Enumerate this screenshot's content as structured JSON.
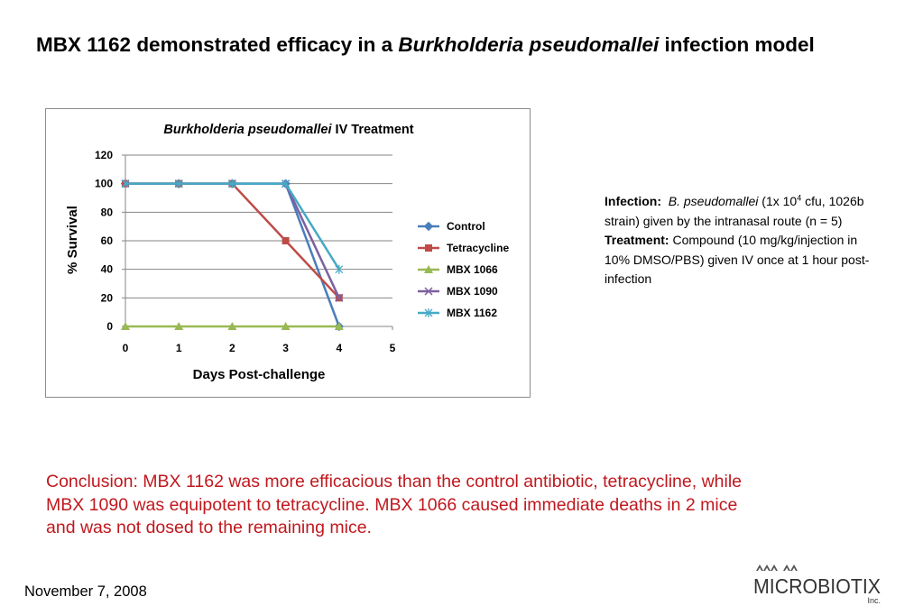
{
  "slide": {
    "title_part1": "MBX 1162 demonstrated efficacy in a ",
    "title_italic": "Burkholderia pseudomallei",
    "title_part2": " infection model"
  },
  "chart_data": {
    "type": "line",
    "title_italic": "Burkholderia pseudomallei",
    "title_rest": " IV Treatment",
    "xlabel": "Days Post-challenge",
    "ylabel": "% Survival",
    "xlim": [
      0,
      5
    ],
    "ylim": [
      0,
      120
    ],
    "xticks": [
      0,
      1,
      2,
      3,
      4,
      5
    ],
    "yticks": [
      0,
      20,
      40,
      60,
      80,
      100,
      120
    ],
    "grid": "horizontal",
    "legend_position": "right",
    "series": [
      {
        "name": "Control",
        "color": "#4a7ebb",
        "marker": "diamond",
        "x": [
          0,
          1,
          2,
          3,
          4
        ],
        "y": [
          100,
          100,
          100,
          100,
          0
        ]
      },
      {
        "name": "Tetracycline",
        "color": "#be4b48",
        "marker": "square",
        "x": [
          0,
          1,
          2,
          3,
          4
        ],
        "y": [
          100,
          100,
          100,
          60,
          20
        ]
      },
      {
        "name": "MBX 1066",
        "color": "#98b954",
        "marker": "triangle",
        "x": [
          0,
          1,
          2,
          3,
          4
        ],
        "y": [
          0,
          0,
          0,
          0,
          0
        ]
      },
      {
        "name": "MBX 1090",
        "color": "#7d60a0",
        "marker": "x",
        "x": [
          0,
          1,
          2,
          3,
          4
        ],
        "y": [
          100,
          100,
          100,
          100,
          20
        ]
      },
      {
        "name": "MBX 1162",
        "color": "#46aac5",
        "marker": "star",
        "x": [
          0,
          1,
          2,
          3,
          4
        ],
        "y": [
          100,
          100,
          100,
          100,
          40
        ]
      }
    ]
  },
  "info": {
    "infection_label": "Infection:",
    "infection_species": "B. pseudomallei",
    "infection_dose_pre": " (1x 10",
    "infection_dose_exp": "4",
    "infection_dose_post": " cfu, 1026b strain) given by the intranasal route (n = 5)",
    "treatment_label": "Treatment:",
    "treatment_text": " Compound (10 mg/kg/injection in 10% DMSO/PBS) given IV once at 1 hour post-infection"
  },
  "conclusion": "Conclusion:  MBX 1162 was more efficacious than the control antibiotic, tetracycline, while MBX 1090 was equipotent to tetracycline.  MBX 1066 caused immediate deaths in 2 mice and was not dosed to the remaining mice.",
  "footer": {
    "date": "November 7, 2008"
  },
  "logo": {
    "name": "MICROBIOTIX",
    "suffix": "Inc."
  }
}
